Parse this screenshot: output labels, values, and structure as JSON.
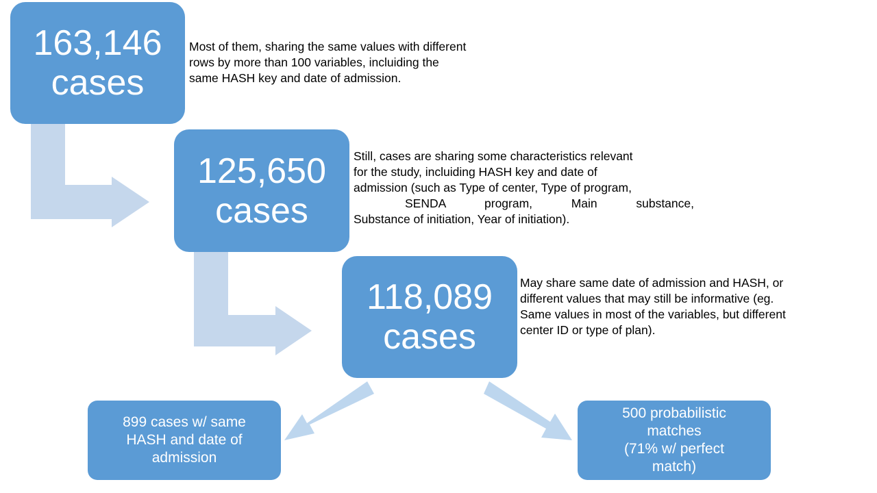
{
  "colors": {
    "box": "#5b9bd5",
    "arrow_light": "#c5d7ec",
    "arrow_medium": "#bdd6ee",
    "text": "#000000"
  },
  "steps": [
    {
      "number": "163,146",
      "unit": "cases",
      "description": [
        "Most of them, sharing the same values with different",
        "rows by more than 100 variables, incluiding the",
        "same HASH key and date of admission."
      ]
    },
    {
      "number": "125,650",
      "unit": "cases",
      "description": [
        "Still, cases are sharing some characteristics relevant",
        "for the study, incluiding HASH key and date of",
        "admission (such as Type of center, Type of program,",
        "SENDA program, Main substance,",
        "Substance of initiation, Year of initiation)."
      ]
    },
    {
      "number": "118,089",
      "unit": "cases",
      "description": [
        "May share same date of admission and HASH, or",
        "different values that may still be informative (eg.",
        "Same values in most of the variables, but different",
        "center ID or type of plan)."
      ]
    }
  ],
  "outcomes": [
    {
      "lines": [
        "899 cases w/ same",
        "HASH and date of",
        "admission"
      ]
    },
    {
      "lines": [
        "500 probabilistic",
        "matches",
        "(71% w/ perfect",
        "match)"
      ]
    }
  ]
}
